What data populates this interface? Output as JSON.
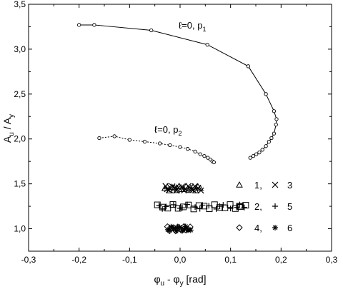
{
  "chart_data": {
    "type": "scatter",
    "xlabel": {
      "main": "φ",
      "sub1": "u",
      "mid": " - φ",
      "sub2": "y",
      "tail": " [rad]"
    },
    "ylabel": {
      "main": "A",
      "sub1": "u",
      "mid": " / A",
      "sub2": "y"
    },
    "xlim": [
      -0.3,
      0.3
    ],
    "ylim": [
      0.75,
      3.5
    ],
    "xticks": [
      -0.3,
      -0.2,
      -0.1,
      0.0,
      0.1,
      0.2,
      0.3
    ],
    "xtick_labels": [
      "-0,3",
      "-0,2",
      "-0,1",
      "0,0",
      "0,1",
      "0,2",
      "0,3"
    ],
    "yticks": [
      1.0,
      1.5,
      2.0,
      2.5,
      3.0,
      3.5
    ],
    "ytick_labels": [
      "1,0",
      "1,5",
      "2,0",
      "2,5",
      "3,0",
      "3,5"
    ],
    "grid": false,
    "legend_position": "bottom-right",
    "curves": [
      {
        "label_main": "ℓ=0, p",
        "label_sub": "1",
        "style": "solid",
        "x": [
          -0.2,
          -0.17,
          -0.057,
          0.054,
          0.135,
          0.17,
          0.186,
          0.191,
          0.19,
          0.186,
          0.181,
          0.176,
          0.17,
          0.163,
          0.157,
          0.151,
          0.145,
          0.139
        ],
        "y": [
          3.27,
          3.27,
          3.21,
          3.05,
          2.81,
          2.5,
          2.31,
          2.22,
          2.16,
          2.06,
          2.01,
          1.97,
          1.92,
          1.88,
          1.85,
          1.83,
          1.81,
          1.79
        ]
      },
      {
        "label_main": "ℓ=0, p",
        "label_sub": "2",
        "style": "dotted",
        "x": [
          -0.16,
          -0.13,
          -0.1,
          -0.07,
          -0.04,
          -0.02,
          0.0,
          0.015,
          0.03,
          0.04,
          0.048,
          0.055,
          0.06,
          0.064,
          0.067
        ],
        "y": [
          2.01,
          2.03,
          1.99,
          1.97,
          1.95,
          1.93,
          1.91,
          1.89,
          1.86,
          1.83,
          1.81,
          1.79,
          1.77,
          1.75,
          1.74
        ]
      }
    ],
    "clusters": [
      {
        "y": 1.45,
        "xmin": -0.03,
        "xmax": 0.04,
        "primary": "triangle",
        "secondary": "x",
        "count": 16
      },
      {
        "y": 1.245,
        "xmin": -0.045,
        "xmax": 0.13,
        "primary": "square",
        "secondary": "plus",
        "count": 18
      },
      {
        "y": 1.0,
        "xmin": -0.025,
        "xmax": 0.02,
        "primary": "diamond",
        "secondary": "asterisk",
        "count": 12
      }
    ],
    "legend": [
      {
        "symbol_a": "triangle",
        "label_a": "1,",
        "symbol_b": "x",
        "label_b": "3"
      },
      {
        "symbol_a": "square",
        "label_a": "2,",
        "symbol_b": "plus",
        "label_b": "5"
      },
      {
        "symbol_a": "diamond",
        "label_a": "4,",
        "symbol_b": "asterisk",
        "label_b": "6"
      }
    ]
  }
}
